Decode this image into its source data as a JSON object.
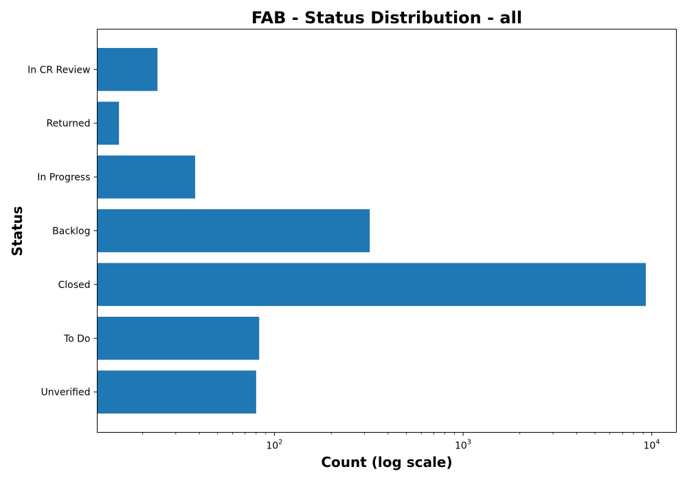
{
  "chart_data": {
    "type": "bar",
    "orientation": "horizontal",
    "title": "FAB - Status Distribution - all",
    "xlabel": "Count (log scale)",
    "ylabel": "Status",
    "xscale": "log",
    "xlim": [
      11.5,
      13500
    ],
    "categories": [
      "Unverified",
      "To Do",
      "Closed",
      "Backlog",
      "In Progress",
      "Returned",
      "In CR Review"
    ],
    "values": [
      80,
      83,
      9300,
      320,
      38,
      15,
      24
    ],
    "xticks": [
      {
        "base": "10",
        "exp": "2",
        "value": 100
      },
      {
        "base": "10",
        "exp": "3",
        "value": 1000
      },
      {
        "base": "10",
        "exp": "4",
        "value": 10000
      }
    ],
    "bar_color": "#1f77b4",
    "grid": false,
    "legend": "none"
  }
}
